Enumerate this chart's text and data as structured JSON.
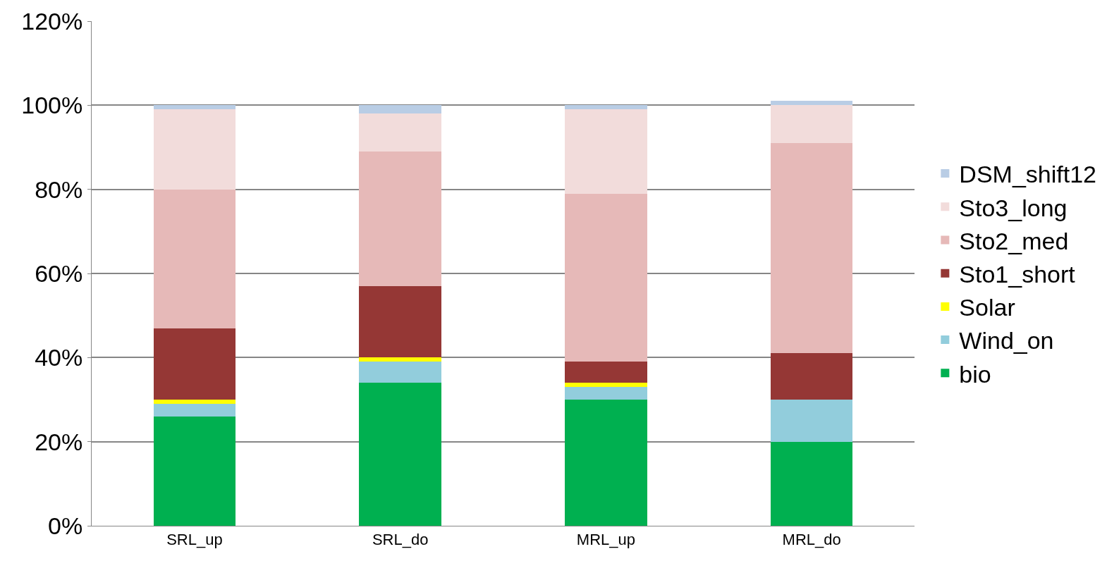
{
  "chart_data": {
    "type": "bar",
    "stacked": true,
    "categories": [
      "SRL_up",
      "SRL_do",
      "MRL_up",
      "MRL_do"
    ],
    "series": [
      {
        "name": "bio",
        "color": "#00b050",
        "values": [
          26,
          34,
          30,
          20
        ]
      },
      {
        "name": "Wind_on",
        "color": "#92cddc",
        "values": [
          3,
          5,
          3,
          10
        ]
      },
      {
        "name": "Solar",
        "color": "#ffff00",
        "values": [
          1,
          1,
          1,
          0
        ]
      },
      {
        "name": "Sto1_short",
        "color": "#953735",
        "values": [
          17,
          17,
          5,
          11
        ]
      },
      {
        "name": "Sto2_med",
        "color": "#e6b9b8",
        "values": [
          33,
          32,
          40,
          50
        ]
      },
      {
        "name": "Sto3_long",
        "color": "#f2dcdb",
        "values": [
          19,
          9,
          20,
          9
        ]
      },
      {
        "name": "DSM_shift12",
        "color": "#b9cde5",
        "values": [
          1,
          2,
          1,
          1
        ]
      }
    ],
    "ylim": [
      0,
      120
    ],
    "yticks": [
      {
        "value": 0,
        "label": "0%"
      },
      {
        "value": 20,
        "label": "20%"
      },
      {
        "value": 40,
        "label": "40%"
      },
      {
        "value": 60,
        "label": "60%"
      },
      {
        "value": 80,
        "label": "80%"
      },
      {
        "value": 100,
        "label": "100%"
      },
      {
        "value": 120,
        "label": "120%"
      }
    ],
    "grid": "y",
    "legend": "right"
  }
}
